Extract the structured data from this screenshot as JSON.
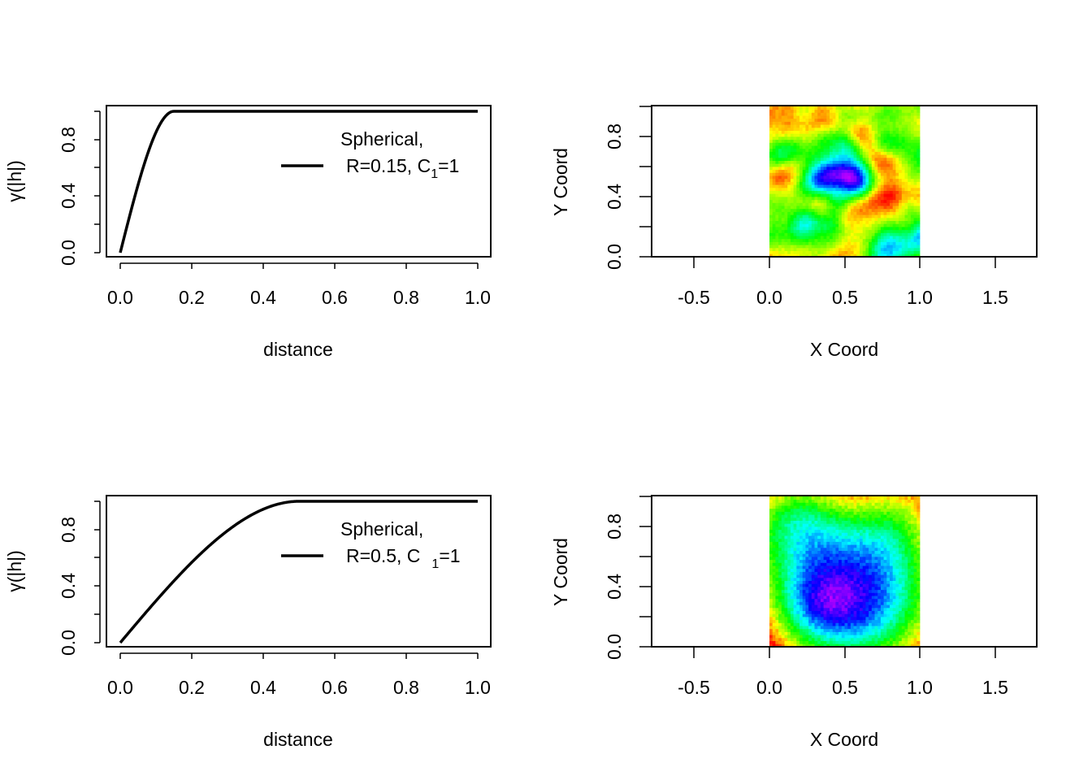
{
  "chart_data": [
    {
      "type": "line",
      "panel": "top-left",
      "xlabel": "distance",
      "ylabel": "γ(|h|)",
      "xlim": [
        0,
        1
      ],
      "ylim": [
        0,
        1
      ],
      "x_ticks": [
        "0.0",
        "0.2",
        "0.4",
        "0.6",
        "0.8",
        "1.0"
      ],
      "y_ticks": [
        "0.0",
        "0.4",
        "0.8"
      ],
      "model": "spherical",
      "range": 0.15,
      "sill": 1,
      "legend": {
        "line1": "Spherical,",
        "line2_pre": "R=0.15, C",
        "line2_sub": "1",
        "line2_post": "=1",
        "placement": "right"
      },
      "series": [
        {
          "color": "#000000",
          "x": [
            0,
            0.025,
            0.05,
            0.075,
            0.1,
            0.125,
            0.15,
            0.2,
            0.4,
            0.6,
            0.8,
            1.0
          ],
          "y": [
            0,
            0.248,
            0.481,
            0.688,
            0.852,
            0.961,
            1,
            1,
            1,
            1,
            1,
            1
          ]
        }
      ]
    },
    {
      "type": "heatmap",
      "panel": "top-right",
      "xlabel": "X Coord",
      "ylabel": "Y Coord",
      "xlim": [
        -0.8,
        1.8
      ],
      "ylim": [
        0,
        1
      ],
      "x_ticks": [
        "-0.5",
        "0.0",
        "0.5",
        "1.0",
        "1.5"
      ],
      "y_ticks": [
        "0.0",
        "0.4",
        "0.8"
      ],
      "range": 0.15,
      "grid": 50,
      "seed": 11,
      "palette": [
        "#ff0000",
        "#ffff00",
        "#00ff00",
        "#00ffff",
        "#0000ff",
        "#ff00ff"
      ]
    },
    {
      "type": "line",
      "panel": "bottom-left",
      "xlabel": "distance",
      "ylabel": "γ(|h|)",
      "xlim": [
        0,
        1
      ],
      "ylim": [
        0,
        1
      ],
      "x_ticks": [
        "0.0",
        "0.2",
        "0.4",
        "0.6",
        "0.8",
        "1.0"
      ],
      "y_ticks": [
        "0.0",
        "0.4",
        "0.8"
      ],
      "model": "spherical",
      "range": 0.5,
      "sill": 1,
      "legend": {
        "line1": "Spherical,",
        "line2_pre": "R=0.5, C",
        "line2_sub": "1",
        "line2_post": "=1",
        "placement": "right"
      },
      "series": [
        {
          "color": "#000000",
          "x": [
            0,
            0.05,
            0.1,
            0.15,
            0.2,
            0.25,
            0.3,
            0.35,
            0.4,
            0.45,
            0.5,
            0.6,
            0.8,
            1.0
          ],
          "y": [
            0,
            0.15,
            0.296,
            0.436,
            0.568,
            0.688,
            0.792,
            0.879,
            0.944,
            0.985,
            1,
            1,
            1,
            1
          ]
        }
      ]
    },
    {
      "type": "heatmap",
      "panel": "bottom-right",
      "xlabel": "X Coord",
      "ylabel": "Y Coord",
      "xlim": [
        -0.8,
        1.8
      ],
      "ylim": [
        0,
        1
      ],
      "x_ticks": [
        "-0.5",
        "0.0",
        "0.5",
        "1.0",
        "1.5"
      ],
      "y_ticks": [
        "0.0",
        "0.4",
        "0.8"
      ],
      "range": 0.5,
      "grid": 50,
      "seed": 23,
      "palette": [
        "#ff0000",
        "#ffff00",
        "#00ff00",
        "#00ffff",
        "#0000ff",
        "#ff00ff"
      ]
    }
  ]
}
